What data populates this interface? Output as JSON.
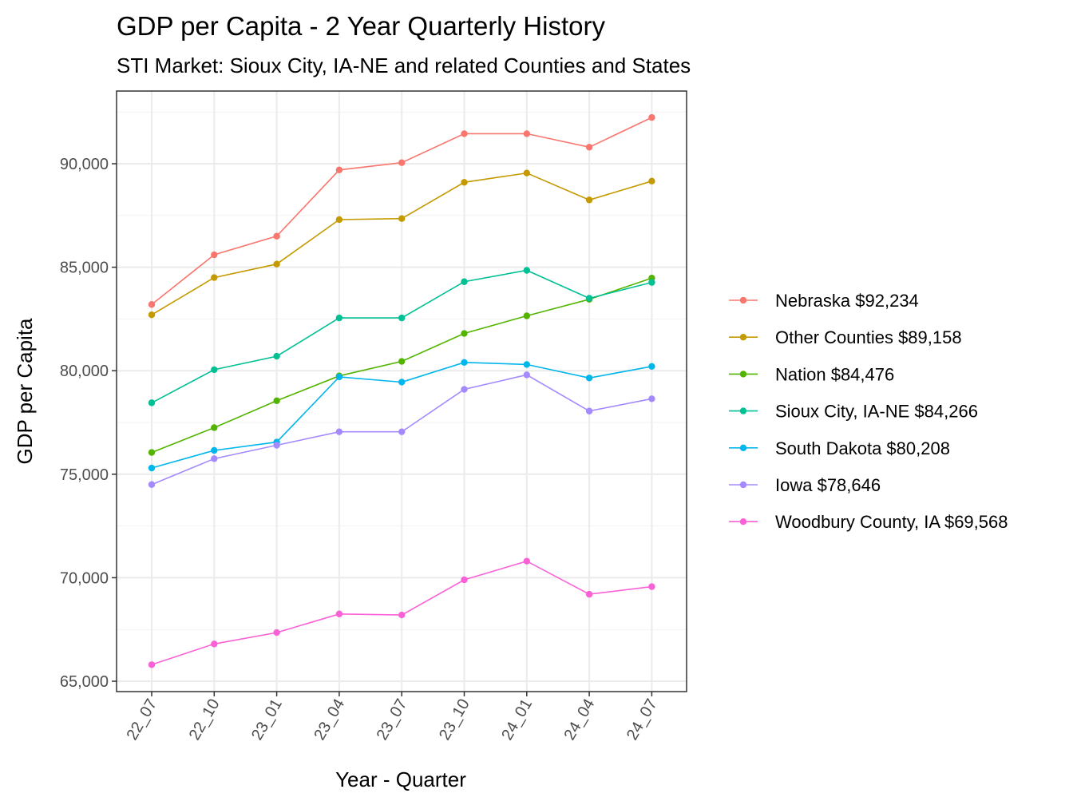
{
  "chart_data": {
    "type": "line",
    "title": "GDP per Capita - 2 Year Quarterly History",
    "subtitle": "STI Market: Sioux City, IA-NE and related Counties and States",
    "xlabel": "Year - Quarter",
    "ylabel": "GDP per Capita",
    "categories": [
      "22_07",
      "22_10",
      "23_01",
      "23_04",
      "23_07",
      "23_10",
      "24_01",
      "24_04",
      "24_07"
    ],
    "ylim": [
      64500,
      92500
    ],
    "yticks": [
      65000,
      70000,
      75000,
      80000,
      85000,
      90000
    ],
    "ytick_labels": [
      "65,000",
      "70,000",
      "75,000",
      "80,000",
      "85,000",
      "90,000"
    ],
    "grid": true,
    "legend_position": "right",
    "series": [
      {
        "name": "Nebraska $92,234",
        "color": "#F8766D",
        "values": [
          83200,
          85600,
          86500,
          89700,
          90050,
          91450,
          91450,
          90800,
          92234
        ]
      },
      {
        "name": "Other Counties $89,158",
        "color": "#C49A00",
        "values": [
          82700,
          84500,
          85150,
          87300,
          87350,
          89100,
          89550,
          88250,
          89158
        ]
      },
      {
        "name": "Nation $84,476",
        "color": "#53B400",
        "values": [
          76050,
          77250,
          78550,
          79750,
          80450,
          81800,
          82650,
          83450,
          84476
        ]
      },
      {
        "name": "Sioux City, IA-NE $84,266",
        "color": "#00C094",
        "values": [
          78450,
          80050,
          80700,
          82550,
          82550,
          84300,
          84850,
          83500,
          84266
        ]
      },
      {
        "name": "South Dakota $80,208",
        "color": "#00B6EB",
        "values": [
          75300,
          76150,
          76550,
          79700,
          79450,
          80400,
          80300,
          79650,
          80208
        ]
      },
      {
        "name": "Iowa $78,646",
        "color": "#A58AFF",
        "values": [
          74500,
          75750,
          76400,
          77050,
          77050,
          79100,
          79800,
          78050,
          78646
        ]
      },
      {
        "name": "Woodbury County, IA $69,568",
        "color": "#FB61D7",
        "values": [
          65800,
          66800,
          67350,
          68250,
          68200,
          69900,
          70800,
          69200,
          69568
        ]
      }
    ]
  }
}
